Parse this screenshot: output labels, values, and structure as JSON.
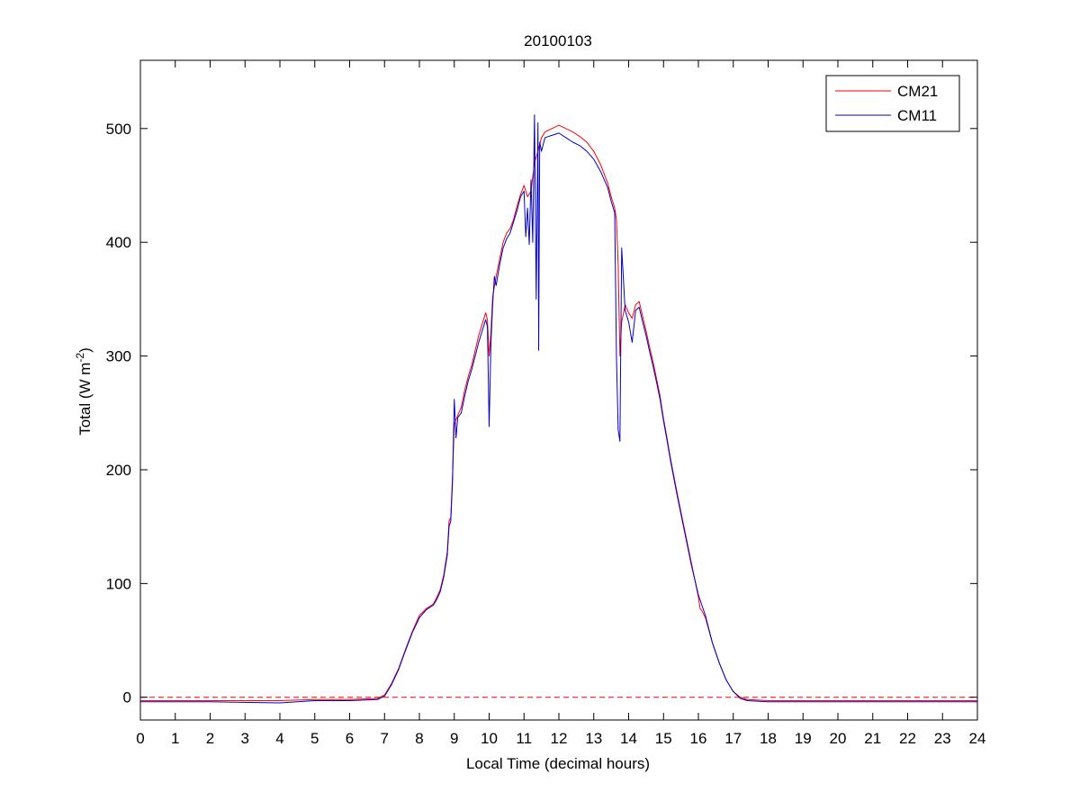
{
  "chart_data": {
    "type": "line",
    "title": "20100103",
    "xlabel": "Local Time (decimal hours)",
    "ylabel": {
      "prefix": "Total (W m",
      "superscript": "-2",
      "suffix": ")"
    },
    "xlim": [
      0,
      24
    ],
    "ylim": [
      -20,
      560
    ],
    "xticks": [
      0,
      1,
      2,
      3,
      4,
      5,
      6,
      7,
      8,
      9,
      10,
      11,
      12,
      13,
      14,
      15,
      16,
      17,
      18,
      19,
      20,
      21,
      22,
      23,
      24
    ],
    "yticks": [
      0,
      100,
      200,
      300,
      400,
      500
    ],
    "grid": false,
    "legend": {
      "position": "top-right",
      "entries": [
        "CM21",
        "CM11"
      ]
    },
    "reference_line": {
      "y": 0,
      "style": "dashed",
      "color": "#ff0000"
    },
    "series": [
      {
        "name": "CM21",
        "color": "#ff0000",
        "points": [
          [
            0,
            -3
          ],
          [
            2,
            -3
          ],
          [
            4,
            -3
          ],
          [
            5,
            -2
          ],
          [
            6,
            -2
          ],
          [
            6.8,
            -1
          ],
          [
            7.0,
            2
          ],
          [
            7.2,
            12
          ],
          [
            7.4,
            25
          ],
          [
            7.6,
            42
          ],
          [
            7.8,
            58
          ],
          [
            8.0,
            72
          ],
          [
            8.2,
            78
          ],
          [
            8.4,
            82
          ],
          [
            8.5,
            88
          ],
          [
            8.6,
            95
          ],
          [
            8.7,
            108
          ],
          [
            8.8,
            128
          ],
          [
            8.85,
            155
          ],
          [
            8.9,
            158
          ],
          [
            8.95,
            195
          ],
          [
            9.0,
            240
          ],
          [
            9.1,
            248
          ],
          [
            9.2,
            255
          ],
          [
            9.3,
            270
          ],
          [
            9.4,
            282
          ],
          [
            9.5,
            292
          ],
          [
            9.6,
            305
          ],
          [
            9.7,
            318
          ],
          [
            9.8,
            328
          ],
          [
            9.9,
            338
          ],
          [
            9.95,
            332
          ],
          [
            10.0,
            300
          ],
          [
            10.05,
            320
          ],
          [
            10.1,
            352
          ],
          [
            10.2,
            370
          ],
          [
            10.3,
            385
          ],
          [
            10.4,
            400
          ],
          [
            10.5,
            408
          ],
          [
            10.6,
            412
          ],
          [
            10.7,
            420
          ],
          [
            10.8,
            432
          ],
          [
            10.9,
            442
          ],
          [
            11.0,
            450
          ],
          [
            11.1,
            440
          ],
          [
            11.2,
            445
          ],
          [
            11.3,
            470
          ],
          [
            11.4,
            480
          ],
          [
            11.5,
            492
          ],
          [
            11.6,
            497
          ],
          [
            11.8,
            500
          ],
          [
            12.0,
            503
          ],
          [
            12.2,
            500
          ],
          [
            12.4,
            497
          ],
          [
            12.6,
            493
          ],
          [
            12.8,
            488
          ],
          [
            13.0,
            480
          ],
          [
            13.2,
            468
          ],
          [
            13.4,
            452
          ],
          [
            13.5,
            440
          ],
          [
            13.6,
            430
          ],
          [
            13.65,
            420
          ],
          [
            13.7,
            380
          ],
          [
            13.75,
            300
          ],
          [
            13.8,
            330
          ],
          [
            13.9,
            345
          ],
          [
            14.0,
            338
          ],
          [
            14.1,
            333
          ],
          [
            14.2,
            345
          ],
          [
            14.3,
            348
          ],
          [
            14.4,
            335
          ],
          [
            14.5,
            322
          ],
          [
            14.6,
            308
          ],
          [
            14.7,
            295
          ],
          [
            14.8,
            280
          ],
          [
            14.9,
            265
          ],
          [
            15.0,
            245
          ],
          [
            15.1,
            228
          ],
          [
            15.2,
            210
          ],
          [
            15.4,
            178
          ],
          [
            15.6,
            148
          ],
          [
            15.8,
            118
          ],
          [
            16.0,
            88
          ],
          [
            16.05,
            78
          ],
          [
            16.1,
            76
          ],
          [
            16.2,
            70
          ],
          [
            16.4,
            48
          ],
          [
            16.6,
            30
          ],
          [
            16.8,
            15
          ],
          [
            17.0,
            5
          ],
          [
            17.2,
            0
          ],
          [
            17.4,
            -2
          ],
          [
            18,
            -3
          ],
          [
            20,
            -3
          ],
          [
            22,
            -3
          ],
          [
            24,
            -3
          ]
        ]
      },
      {
        "name": "CM11",
        "color": "#0000cc",
        "points": [
          [
            0,
            -4
          ],
          [
            2,
            -4
          ],
          [
            4,
            -5
          ],
          [
            5,
            -3
          ],
          [
            6,
            -3
          ],
          [
            6.8,
            -2
          ],
          [
            7.0,
            1
          ],
          [
            7.2,
            11
          ],
          [
            7.4,
            24
          ],
          [
            7.6,
            41
          ],
          [
            7.8,
            57
          ],
          [
            8.0,
            70
          ],
          [
            8.2,
            77
          ],
          [
            8.4,
            81
          ],
          [
            8.5,
            86
          ],
          [
            8.6,
            93
          ],
          [
            8.7,
            106
          ],
          [
            8.8,
            125
          ],
          [
            8.85,
            150
          ],
          [
            8.9,
            155
          ],
          [
            8.95,
            190
          ],
          [
            9.0,
            262
          ],
          [
            9.05,
            228
          ],
          [
            9.1,
            246
          ],
          [
            9.2,
            250
          ],
          [
            9.3,
            265
          ],
          [
            9.4,
            278
          ],
          [
            9.5,
            288
          ],
          [
            9.6,
            300
          ],
          [
            9.7,
            312
          ],
          [
            9.8,
            322
          ],
          [
            9.9,
            332
          ],
          [
            9.95,
            326
          ],
          [
            10.0,
            238
          ],
          [
            10.05,
            310
          ],
          [
            10.1,
            345
          ],
          [
            10.15,
            370
          ],
          [
            10.2,
            362
          ],
          [
            10.3,
            380
          ],
          [
            10.4,
            395
          ],
          [
            10.5,
            403
          ],
          [
            10.6,
            408
          ],
          [
            10.7,
            418
          ],
          [
            10.8,
            428
          ],
          [
            10.9,
            440
          ],
          [
            11.0,
            445
          ],
          [
            11.05,
            405
          ],
          [
            11.1,
            430
          ],
          [
            11.15,
            398
          ],
          [
            11.2,
            455
          ],
          [
            11.25,
            400
          ],
          [
            11.3,
            512
          ],
          [
            11.35,
            350
          ],
          [
            11.4,
            505
          ],
          [
            11.42,
            305
          ],
          [
            11.45,
            488
          ],
          [
            11.5,
            480
          ],
          [
            11.6,
            492
          ],
          [
            11.8,
            494
          ],
          [
            12.0,
            496
          ],
          [
            12.2,
            492
          ],
          [
            12.4,
            488
          ],
          [
            12.6,
            485
          ],
          [
            12.8,
            480
          ],
          [
            13.0,
            473
          ],
          [
            13.2,
            462
          ],
          [
            13.4,
            448
          ],
          [
            13.5,
            436
          ],
          [
            13.6,
            426
          ],
          [
            13.65,
            300
          ],
          [
            13.7,
            235
          ],
          [
            13.75,
            225
          ],
          [
            13.8,
            395
          ],
          [
            13.9,
            340
          ],
          [
            14.0,
            330
          ],
          [
            14.1,
            312
          ],
          [
            14.2,
            340
          ],
          [
            14.3,
            343
          ],
          [
            14.4,
            330
          ],
          [
            14.5,
            318
          ],
          [
            14.6,
            304
          ],
          [
            14.7,
            291
          ],
          [
            14.8,
            277
          ],
          [
            14.9,
            262
          ],
          [
            15.0,
            243
          ],
          [
            15.1,
            226
          ],
          [
            15.2,
            208
          ],
          [
            15.4,
            176
          ],
          [
            15.6,
            146
          ],
          [
            15.8,
            116
          ],
          [
            16.0,
            90
          ],
          [
            16.2,
            72
          ],
          [
            16.4,
            48
          ],
          [
            16.6,
            30
          ],
          [
            16.8,
            15
          ],
          [
            17.0,
            5
          ],
          [
            17.2,
            -1
          ],
          [
            17.4,
            -3
          ],
          [
            18,
            -4
          ],
          [
            20,
            -4
          ],
          [
            22,
            -4
          ],
          [
            24,
            -4
          ]
        ]
      }
    ]
  }
}
